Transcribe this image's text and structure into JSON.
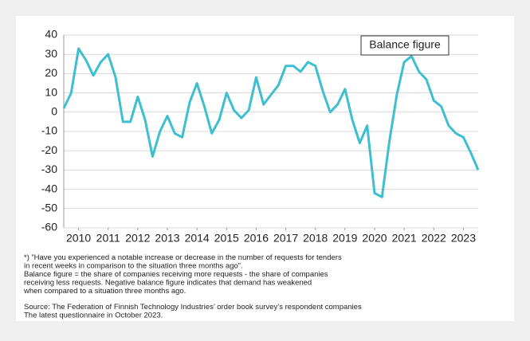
{
  "chart_data": {
    "type": "line",
    "x": [
      2010,
      2010.25,
      2010.5,
      2010.75,
      2011,
      2011.25,
      2011.5,
      2011.75,
      2012,
      2012.25,
      2012.5,
      2012.75,
      2013,
      2013.25,
      2013.5,
      2013.75,
      2014,
      2014.25,
      2014.5,
      2014.75,
      2015,
      2015.25,
      2015.5,
      2015.75,
      2016,
      2016.25,
      2016.5,
      2016.75,
      2017,
      2017.25,
      2017.5,
      2017.75,
      2018,
      2018.25,
      2018.5,
      2018.75,
      2019,
      2019.25,
      2019.5,
      2019.75,
      2020,
      2020.25,
      2020.5,
      2020.75,
      2021,
      2021.25,
      2021.5,
      2021.75,
      2022,
      2022.25,
      2022.5,
      2022.75,
      2023,
      2023.25,
      2023.5,
      2023.75,
      2024
    ],
    "series": [
      {
        "name": "Balance figure",
        "color": "#3dbfcf",
        "values": [
          2,
          10,
          33,
          27,
          19,
          26,
          30,
          18,
          -5,
          -5,
          8,
          -4,
          -23,
          -10,
          -2,
          -11,
          -13,
          5,
          15,
          3,
          -11,
          -4,
          10,
          1,
          -3,
          1,
          18,
          4,
          9,
          14,
          24,
          24,
          21,
          26,
          24,
          11,
          0,
          4,
          12,
          -4,
          -16,
          -7,
          -42,
          -44,
          -15,
          9,
          26,
          29,
          21,
          17,
          6,
          3,
          -7,
          -11,
          -13,
          -21,
          -30
        ]
      }
    ],
    "xlim": [
      2010,
      2024
    ],
    "xticks": [
      {
        "value": 2010.5,
        "label": "2010"
      },
      {
        "value": 2011.5,
        "label": "2011"
      },
      {
        "value": 2012.5,
        "label": "2012"
      },
      {
        "value": 2013.5,
        "label": "2013"
      },
      {
        "value": 2014.5,
        "label": "2014"
      },
      {
        "value": 2015.5,
        "label": "2015"
      },
      {
        "value": 2016.5,
        "label": "2016"
      },
      {
        "value": 2017.5,
        "label": "2017"
      },
      {
        "value": 2018.5,
        "label": "2018"
      },
      {
        "value": 2019.5,
        "label": "2019"
      },
      {
        "value": 2020.5,
        "label": "2020"
      },
      {
        "value": 2021.5,
        "label": "2021"
      },
      {
        "value": 2022.5,
        "label": "2022"
      },
      {
        "value": 2023.5,
        "label": "2023"
      }
    ],
    "ylim": [
      -60,
      40
    ],
    "yticks": [
      -60,
      -50,
      -40,
      -30,
      -20,
      -10,
      0,
      10,
      20,
      30,
      40
    ],
    "grid": true,
    "legend": "upper right",
    "notes": [
      "*) ”Have you experienced a notable increase or decrease in the number of requests for tenders",
      "in recent weeks in comparison to the situation three months ago”.",
      "Balance figure = the share of companies receiving more requests - the share of companies",
      "receiving less requests. Negative balance figure indicates that demand has weakened",
      "when compared to a situation three months ago."
    ],
    "source": [
      "Source: The Federation of Finnish Technology Industries’ order book survey’s respondent companies",
      "The latest questionnaire in October 2023."
    ]
  }
}
